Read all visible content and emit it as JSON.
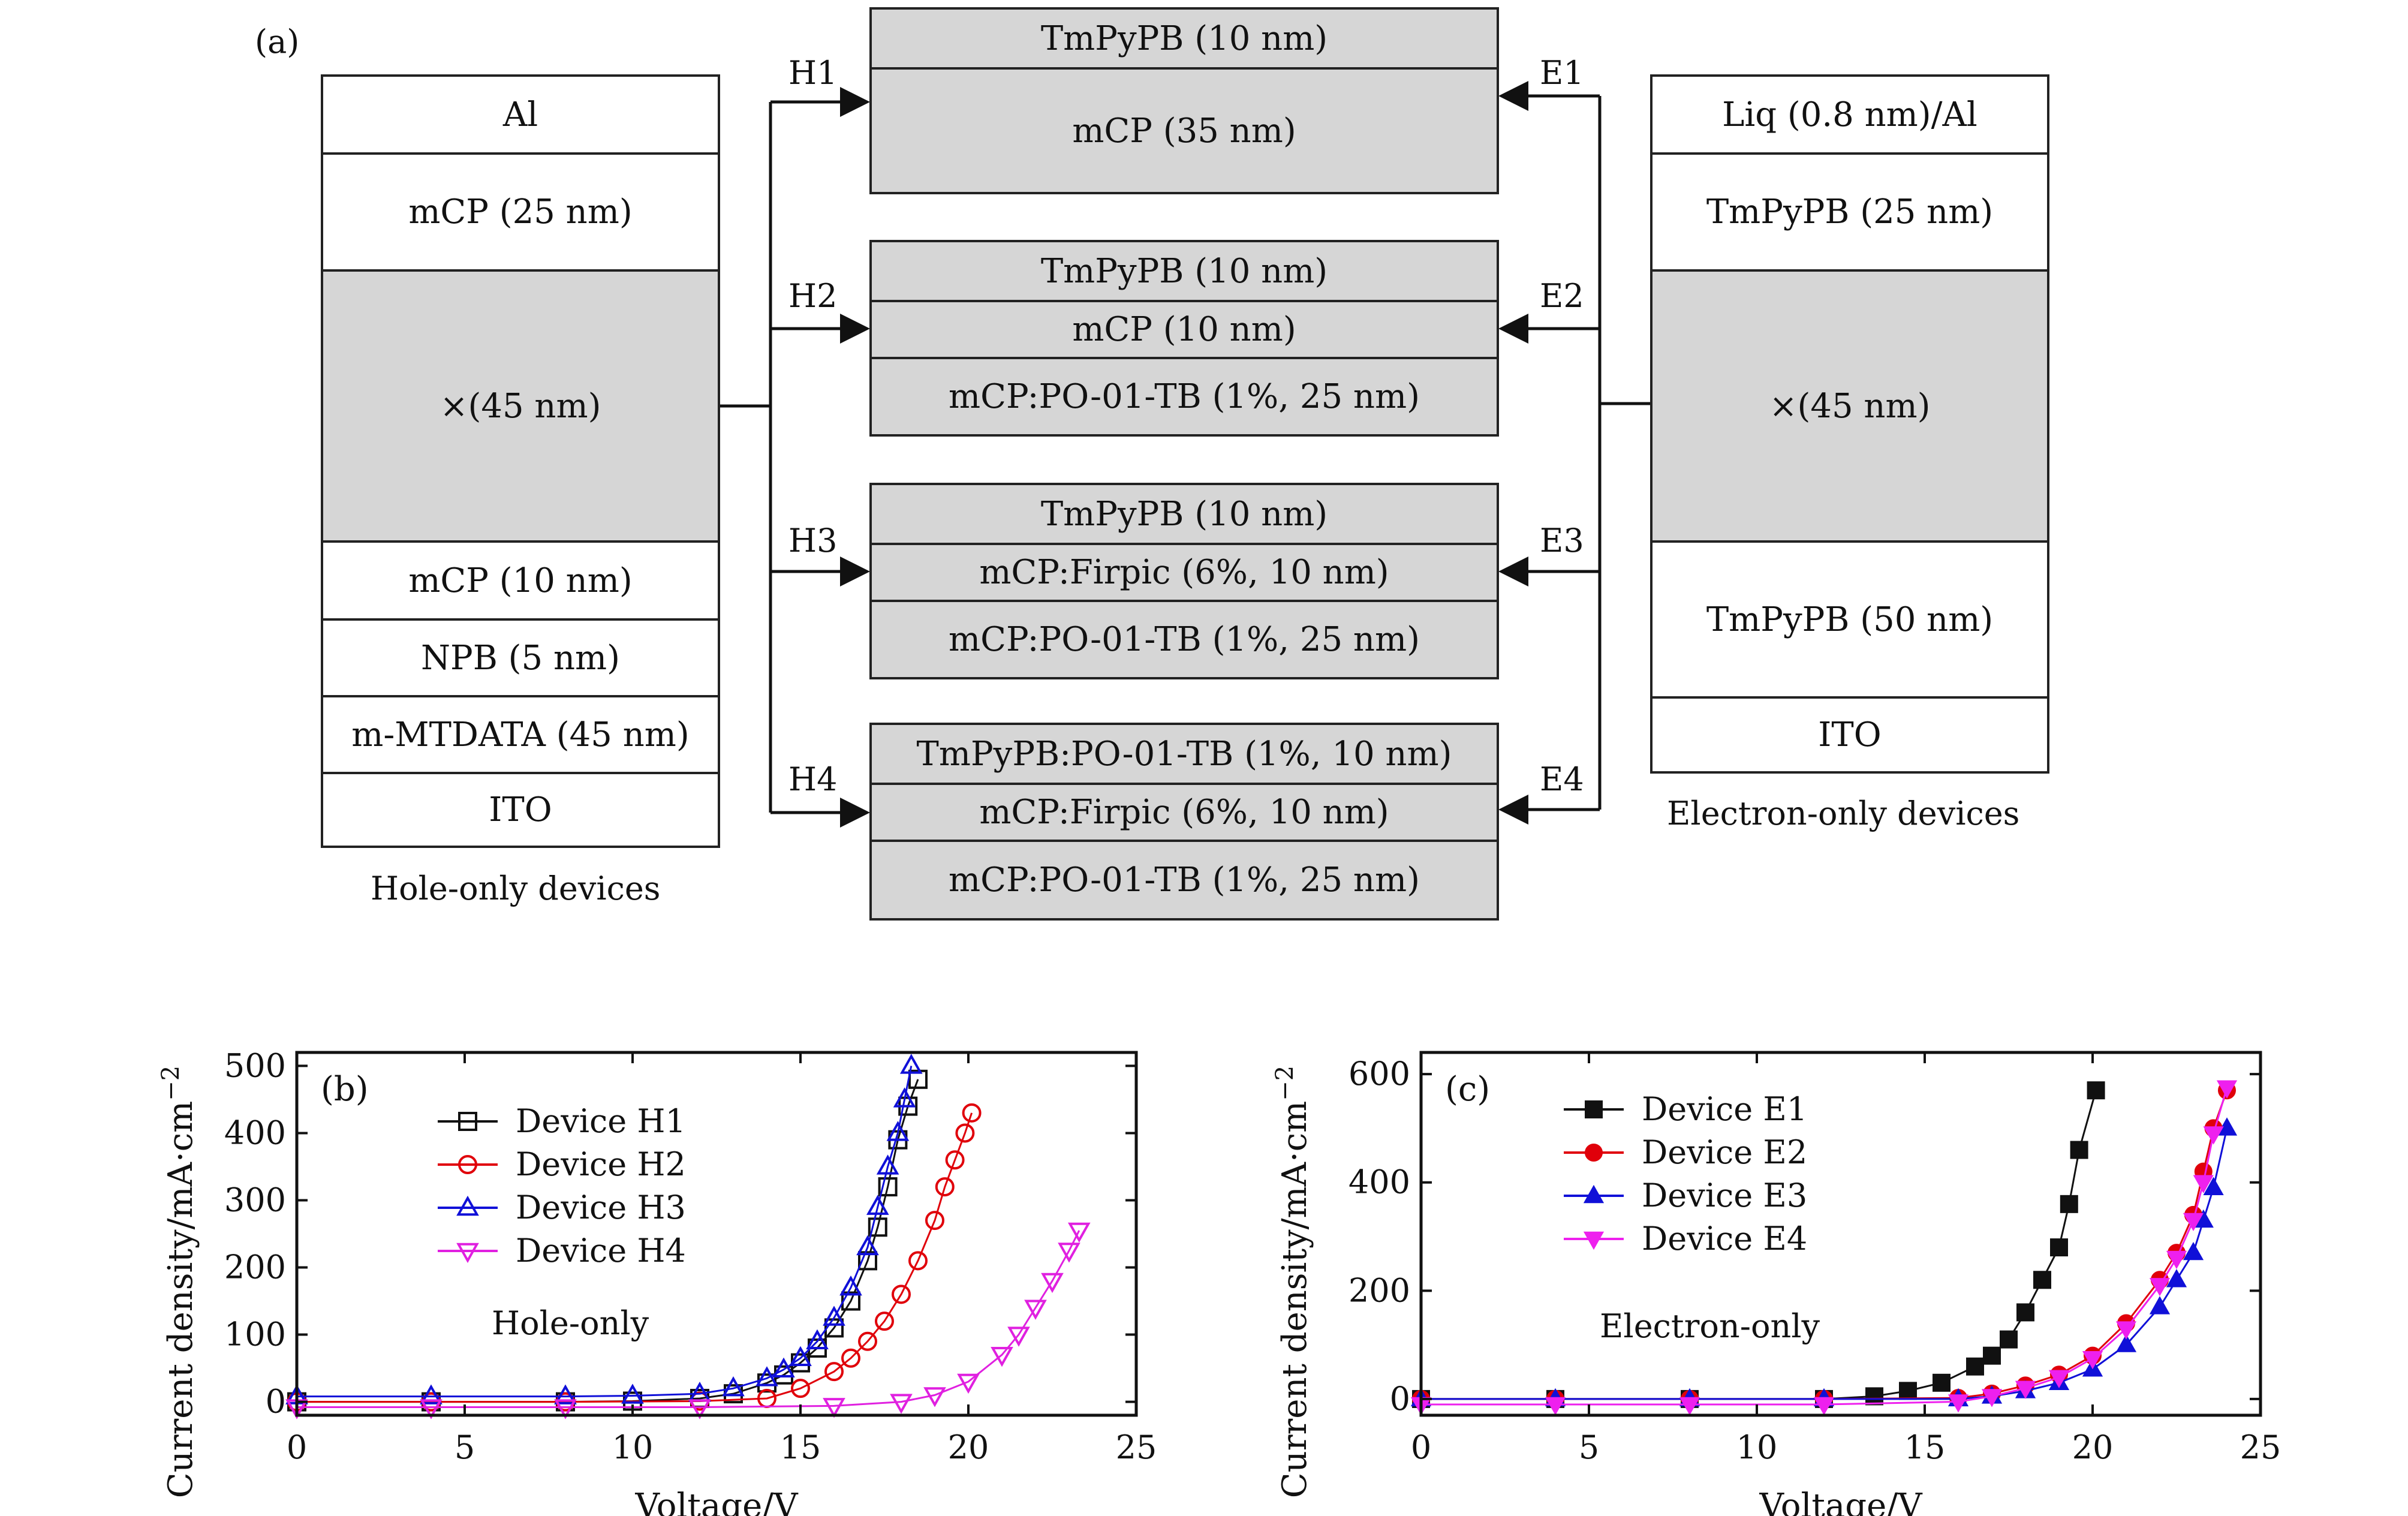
{
  "panel_a": {
    "label": "(a)",
    "hole_stack": {
      "layers": [
        "Al",
        "mCP (25 nm)",
        "×(45 nm)",
        "mCP (10 nm)",
        "NPB (5 nm)",
        "m-MTDATA (45 nm)",
        "ITO"
      ],
      "caption": "Hole-only devices"
    },
    "electron_stack": {
      "layers": [
        "Liq (0.8 nm)/Al",
        "TmPyPB (25 nm)",
        "×(45 nm)",
        "TmPyPB (50 nm)",
        "ITO"
      ],
      "caption": "Electron-only devices"
    },
    "devices": [
      {
        "h": "H1",
        "e": "E1",
        "layers": [
          "TmPyPB (10 nm)",
          "mCP (35 nm)"
        ]
      },
      {
        "h": "H2",
        "e": "E2",
        "layers": [
          "TmPyPB (10 nm)",
          "mCP (10 nm)",
          "mCP:PO-01-TB (1%, 25 nm)"
        ]
      },
      {
        "h": "H3",
        "e": "E3",
        "layers": [
          "TmPyPB (10 nm)",
          "mCP:Firpic (6%, 10 nm)",
          "mCP:PO-01-TB (1%, 25 nm)"
        ]
      },
      {
        "h": "H4",
        "e": "E4",
        "layers": [
          "TmPyPB:PO-01-TB (1%, 10 nm)",
          "mCP:Firpic (6%, 10 nm)",
          "mCP:PO-01-TB (1%, 25 nm)"
        ]
      }
    ]
  },
  "chart_data": [
    {
      "type": "scatter",
      "panel_label": "(b)",
      "annotation": "Hole-only",
      "xlabel": "Voltage/V",
      "ylabel": "Current density/mA·cm",
      "ylabel_sup": "−2",
      "xlim": [
        0,
        25
      ],
      "ylim": [
        -20,
        520
      ],
      "xticks": [
        0,
        5,
        10,
        15,
        20,
        25
      ],
      "yticks": [
        0,
        100,
        200,
        300,
        400,
        500
      ],
      "legend_position": "top-left",
      "series": [
        {
          "name": "Device H1",
          "color": "#111111",
          "marker": "square-open",
          "x": [
            0,
            4,
            8,
            10,
            12,
            13,
            14,
            14.5,
            15,
            15.5,
            16,
            16.5,
            17,
            17.3,
            17.6,
            17.9,
            18.2,
            18.5
          ],
          "y": [
            0,
            0,
            0,
            1,
            5,
            12,
            28,
            40,
            58,
            80,
            110,
            150,
            210,
            260,
            320,
            390,
            440,
            480
          ]
        },
        {
          "name": "Device H2",
          "color": "#e0000a",
          "marker": "circle-open",
          "x": [
            0,
            4,
            8,
            12,
            14,
            15,
            16,
            16.5,
            17,
            17.5,
            18,
            18.5,
            19,
            19.3,
            19.6,
            19.9,
            20.1
          ],
          "y": [
            0,
            0,
            0,
            1,
            5,
            20,
            45,
            65,
            90,
            120,
            160,
            210,
            270,
            320,
            360,
            400,
            430
          ]
        },
        {
          "name": "Device H3",
          "color": "#1010d8",
          "marker": "triangle-up-open",
          "x": [
            0,
            4,
            8,
            10,
            12,
            13,
            14,
            14.5,
            15,
            15.5,
            16,
            16.5,
            17,
            17.3,
            17.6,
            17.9,
            18.1,
            18.3
          ],
          "y": [
            8,
            8,
            8,
            9,
            12,
            20,
            35,
            48,
            65,
            90,
            125,
            170,
            230,
            290,
            350,
            400,
            450,
            500
          ]
        },
        {
          "name": "Device H4",
          "color": "#e020e0",
          "marker": "triangle-down-open",
          "x": [
            0,
            4,
            8,
            12,
            16,
            18,
            19,
            20,
            21,
            21.5,
            22,
            22.5,
            23,
            23.3
          ],
          "y": [
            -8,
            -8,
            -8,
            -8,
            -6,
            0,
            10,
            30,
            70,
            100,
            140,
            180,
            225,
            255
          ]
        }
      ]
    },
    {
      "type": "line",
      "panel_label": "(c)",
      "annotation": "Electron-only",
      "xlabel": "Voltage/V",
      "ylabel": "Current density/mA·cm",
      "ylabel_sup": "−2",
      "xlim": [
        0,
        25
      ],
      "ylim": [
        -30,
        640
      ],
      "xticks": [
        0,
        5,
        10,
        15,
        20,
        25
      ],
      "yticks": [
        0,
        200,
        400,
        600
      ],
      "legend_position": "top-left",
      "series": [
        {
          "name": "Device E1",
          "color": "#111111",
          "marker": "square-filled",
          "x": [
            0,
            4,
            8,
            12,
            13.5,
            14.5,
            15.5,
            16.5,
            17,
            17.5,
            18,
            18.5,
            19,
            19.3,
            19.6,
            20.1
          ],
          "y": [
            0,
            0,
            0,
            0,
            5,
            15,
            30,
            60,
            80,
            110,
            160,
            220,
            280,
            360,
            460,
            570
          ]
        },
        {
          "name": "Device E2",
          "color": "#e0000a",
          "marker": "circle-filled",
          "x": [
            0,
            4,
            8,
            12,
            16,
            17,
            18,
            19,
            20,
            21,
            22,
            22.5,
            23,
            23.3,
            23.6,
            24
          ],
          "y": [
            0,
            0,
            0,
            0,
            2,
            10,
            25,
            45,
            80,
            140,
            220,
            270,
            340,
            420,
            500,
            570
          ]
        },
        {
          "name": "Device E3",
          "color": "#1010d8",
          "marker": "triangle-up-filled",
          "x": [
            0,
            4,
            8,
            12,
            16,
            17,
            18,
            19,
            20,
            21,
            22,
            22.5,
            23,
            23.3,
            23.6,
            24
          ],
          "y": [
            0,
            0,
            0,
            0,
            0,
            5,
            15,
            30,
            55,
            100,
            170,
            220,
            270,
            330,
            390,
            500
          ]
        },
        {
          "name": "Device E4",
          "color": "#ee20ee",
          "marker": "triangle-down-filled",
          "x": [
            0,
            4,
            8,
            12,
            16,
            17,
            18,
            19,
            20,
            21,
            22,
            22.5,
            23,
            23.3,
            23.6,
            24
          ],
          "y": [
            -10,
            -10,
            -10,
            -10,
            -5,
            5,
            20,
            40,
            75,
            130,
            210,
            260,
            330,
            400,
            490,
            575
          ]
        }
      ]
    }
  ]
}
